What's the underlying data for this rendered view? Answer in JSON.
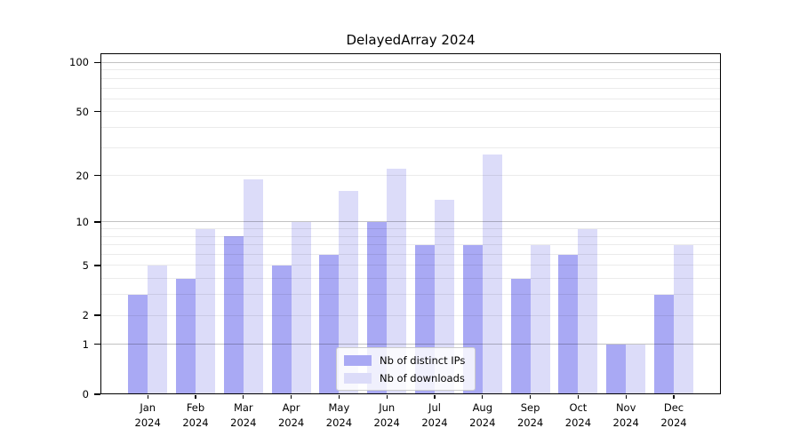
{
  "title": "DelayedArray 2024",
  "chart_data": {
    "type": "bar",
    "title": "DelayedArray 2024",
    "categories": [
      "Jan 2024",
      "Feb 2024",
      "Mar 2024",
      "Apr 2024",
      "May 2024",
      "Jun 2024",
      "Jul 2024",
      "Aug 2024",
      "Sep 2024",
      "Oct 2024",
      "Nov 2024",
      "Dec 2024"
    ],
    "series": [
      {
        "name": "Nb of distinct IPs",
        "color": "#a9a9f4",
        "values": [
          3,
          4,
          8,
          5,
          6,
          10,
          7,
          7,
          4,
          6,
          1,
          3
        ]
      },
      {
        "name": "Nb of downloads",
        "color": "#dcdcf9",
        "values": [
          5,
          9,
          19,
          10,
          16,
          22,
          14,
          27,
          7,
          9,
          1,
          7
        ]
      }
    ],
    "y_scale": "log10(1+x)",
    "y_tick_labels": [
      0,
      1,
      2,
      5,
      10,
      20,
      50,
      100
    ],
    "gridlines_major": [
      1,
      10,
      100
    ],
    "gridlines_minor": [
      2,
      3,
      4,
      5,
      6,
      7,
      8,
      9,
      20,
      30,
      40,
      50,
      60,
      70,
      80,
      90
    ],
    "ylim": [
      0,
      114
    ],
    "grid": true,
    "legend_position": "lower center"
  }
}
